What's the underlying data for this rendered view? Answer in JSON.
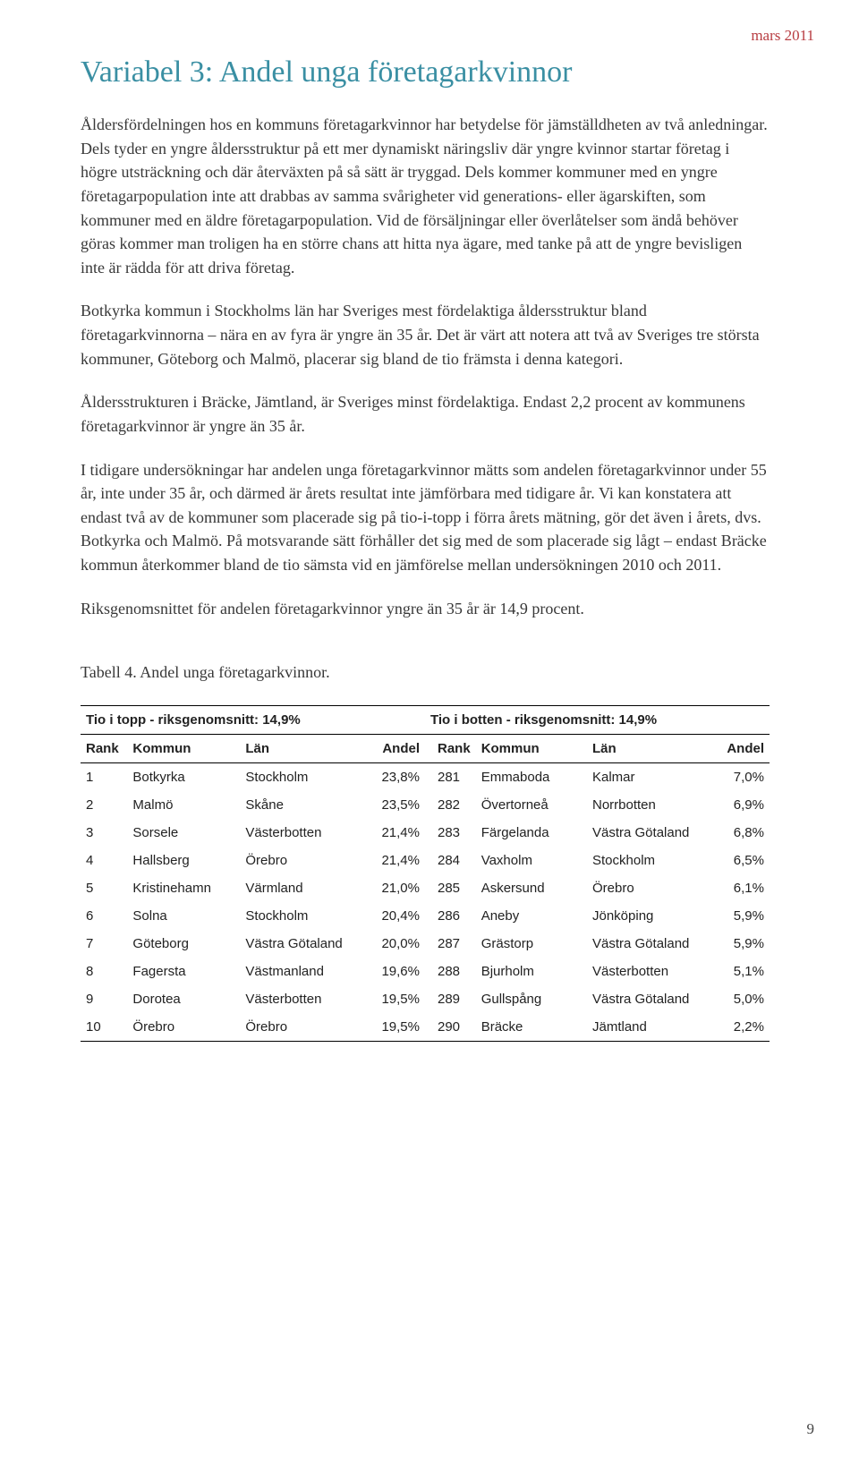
{
  "date_stamp": "mars 2011",
  "heading": "Variabel 3: Andel unga företagarkvinnor",
  "paragraphs": [
    "Åldersfördelningen hos en kommuns företagarkvinnor har betydelse för jämställdheten av två anledningar. Dels tyder en yngre åldersstruktur på ett mer dynamiskt näringsliv där yngre kvinnor startar företag i högre utsträckning och där återväxten på så sätt är tryggad. Dels kommer kommuner med en yngre företagarpopulation inte att drabbas av samma svårigheter vid generations- eller ägarskiften, som kommuner med en äldre företagarpopulation. Vid de försäljningar eller överlåtelser som ändå behöver göras kommer man troligen ha en större chans att hitta nya ägare, med tanke på att de yngre bevisligen inte är rädda för att driva företag.",
    "Botkyrka kommun i Stockholms län har Sveriges mest fördelaktiga åldersstruktur bland företagarkvinnorna – nära en av fyra är yngre än 35 år. Det är värt att notera att två av Sveriges tre största kommuner, Göteborg och Malmö, placerar sig bland de tio främsta i denna kategori.",
    "Åldersstrukturen i Bräcke, Jämtland, är Sveriges minst fördelaktiga. Endast 2,2 procent av kommunens företagarkvinnor är yngre än 35 år.",
    "I tidigare undersökningar har andelen unga företagarkvinnor mätts som andelen företagarkvinnor under 55 år, inte under 35 år, och därmed är årets resultat inte jämförbara med tidigare år. Vi kan konstatera att endast två av de kommuner som placerade sig på tio-i-topp i förra årets mätning, gör det även i årets, dvs. Botkyrka och Malmö. På motsvarande sätt förhåller det sig med de som placerade sig lågt – endast Bräcke kommun återkommer bland de tio sämsta vid en jämförelse mellan undersökningen 2010 och 2011.",
    "Riksgenomsnittet för andelen företagarkvinnor yngre än 35 år är 14,9 procent."
  ],
  "table_caption": "Tabell 4. Andel unga företagarkvinnor.",
  "table": {
    "left": {
      "group_header": "Tio i topp - riksgenomsnitt: 14,9%",
      "columns": [
        "Rank",
        "Kommun",
        "Län",
        "Andel"
      ],
      "rows": [
        [
          "1",
          "Botkyrka",
          "Stockholm",
          "23,8%"
        ],
        [
          "2",
          "Malmö",
          "Skåne",
          "23,5%"
        ],
        [
          "3",
          "Sorsele",
          "Västerbotten",
          "21,4%"
        ],
        [
          "4",
          "Hallsberg",
          "Örebro",
          "21,4%"
        ],
        [
          "5",
          "Kristinehamn",
          "Värmland",
          "21,0%"
        ],
        [
          "6",
          "Solna",
          "Stockholm",
          "20,4%"
        ],
        [
          "7",
          "Göteborg",
          "Västra Götaland",
          "20,0%"
        ],
        [
          "8",
          "Fagersta",
          "Västmanland",
          "19,6%"
        ],
        [
          "9",
          "Dorotea",
          "Västerbotten",
          "19,5%"
        ],
        [
          "10",
          "Örebro",
          "Örebro",
          "19,5%"
        ]
      ]
    },
    "right": {
      "group_header": "Tio i botten - riksgenomsnitt: 14,9%",
      "columns": [
        "Rank",
        "Kommun",
        "Län",
        "Andel"
      ],
      "rows": [
        [
          "281",
          "Emmaboda",
          "Kalmar",
          "7,0%"
        ],
        [
          "282",
          "Övertorneå",
          "Norrbotten",
          "6,9%"
        ],
        [
          "283",
          "Färgelanda",
          "Västra Götaland",
          "6,8%"
        ],
        [
          "284",
          "Vaxholm",
          "Stockholm",
          "6,5%"
        ],
        [
          "285",
          "Askersund",
          "Örebro",
          "6,1%"
        ],
        [
          "286",
          "Aneby",
          "Jönköping",
          "5,9%"
        ],
        [
          "287",
          "Grästorp",
          "Västra Götaland",
          "5,9%"
        ],
        [
          "288",
          "Bjurholm",
          "Västerbotten",
          "5,1%"
        ],
        [
          "289",
          "Gullspång",
          "Västra Götaland",
          "5,0%"
        ],
        [
          "290",
          "Bräcke",
          "Jämtland",
          "2,2%"
        ]
      ]
    }
  },
  "page_number": "9"
}
